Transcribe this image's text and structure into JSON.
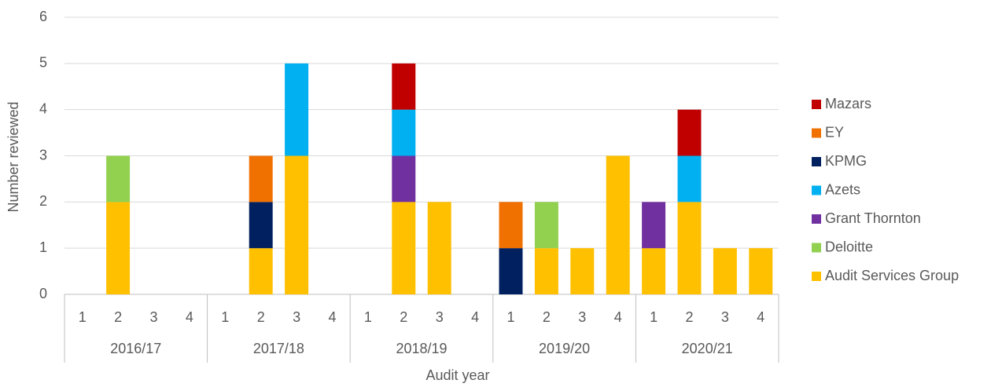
{
  "chart_data": {
    "type": "stacked_bar",
    "x_label": "Audit year",
    "y_label": "Number reviewed",
    "categories": [
      "1",
      "2",
      "3",
      "4",
      "1",
      "2",
      "3",
      "4",
      "1",
      "2",
      "3",
      "4",
      "1",
      "2",
      "3",
      "4",
      "1",
      "2",
      "3",
      "4"
    ],
    "category_groups": [
      "2016/17",
      "2017/18",
      "2018/19",
      "2019/20",
      "2020/21"
    ],
    "series": [
      {
        "name": "Audit Services Group",
        "color": "#FFC000",
        "values": [
          0,
          2,
          0,
          0,
          0,
          1,
          3,
          0,
          0,
          2,
          2,
          0,
          0,
          1,
          1,
          3,
          1,
          2,
          1,
          1
        ]
      },
      {
        "name": "Deloitte",
        "color": "#92D050",
        "values": [
          0,
          1,
          0,
          0,
          0,
          0,
          0,
          0,
          0,
          0,
          0,
          0,
          0,
          1,
          0,
          0,
          0,
          0,
          0,
          0
        ]
      },
      {
        "name": "Grant Thornton",
        "color": "#7030A0",
        "values": [
          0,
          0,
          0,
          0,
          0,
          0,
          0,
          0,
          0,
          1,
          0,
          0,
          0,
          0,
          0,
          0,
          1,
          0,
          0,
          0
        ]
      },
      {
        "name": "Azets",
        "color": "#00B0F0",
        "values": [
          0,
          0,
          0,
          0,
          0,
          0,
          2,
          0,
          0,
          1,
          0,
          0,
          0,
          0,
          0,
          0,
          0,
          1,
          0,
          0
        ]
      },
      {
        "name": "KPMG",
        "color": "#002060",
        "values": [
          0,
          0,
          0,
          0,
          0,
          1,
          0,
          0,
          0,
          0,
          0,
          0,
          1,
          0,
          0,
          0,
          0,
          0,
          0,
          0
        ]
      },
      {
        "name": "EY",
        "color": "#F07000",
        "values": [
          0,
          0,
          0,
          0,
          0,
          1,
          0,
          0,
          0,
          0,
          0,
          0,
          1,
          0,
          0,
          0,
          0,
          0,
          0,
          0
        ]
      },
      {
        "name": "Mazars",
        "color": "#C00000",
        "values": [
          0,
          0,
          0,
          0,
          0,
          0,
          0,
          0,
          0,
          1,
          0,
          0,
          0,
          0,
          0,
          0,
          0,
          1,
          0,
          0
        ]
      }
    ],
    "ylim": [
      0,
      6
    ],
    "yticks": [
      0,
      1,
      2,
      3,
      4,
      5,
      6
    ],
    "grid": true,
    "legend": "right"
  }
}
